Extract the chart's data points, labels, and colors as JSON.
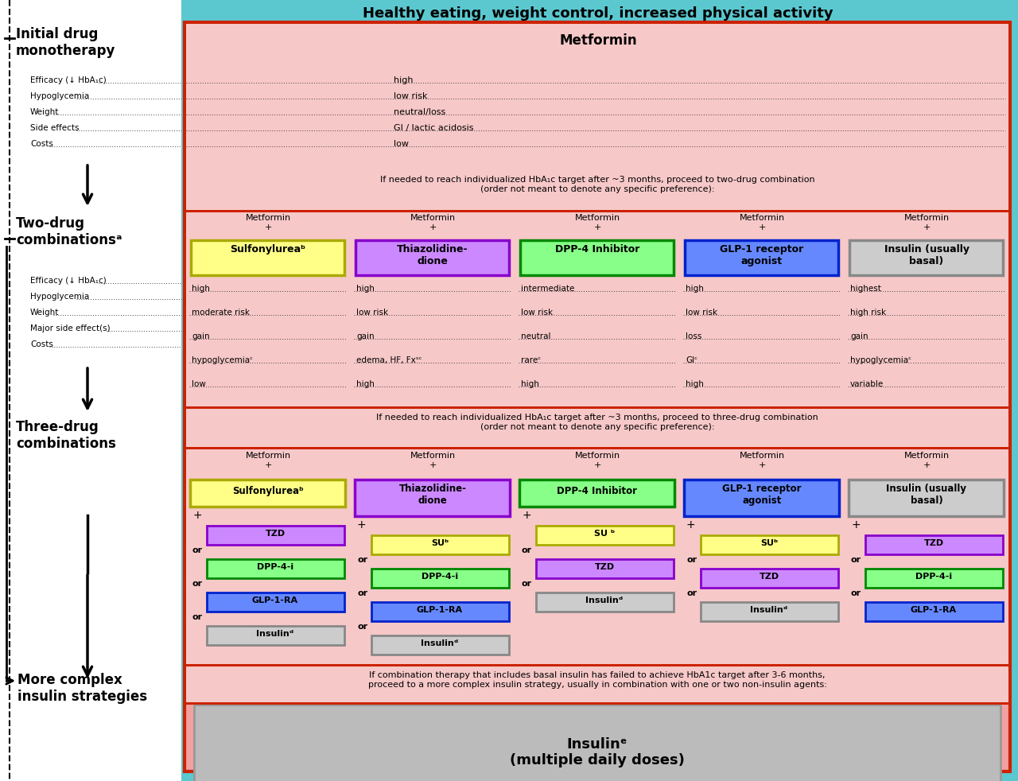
{
  "title": "Healthy eating, weight control, increased physical activity",
  "outer_bg": "#5bc8d0",
  "main_bg": "#f2a0a0",
  "main_border": "#cc2200",
  "inner_bg": "#f7c8c8",
  "mono_drug": "Metformin",
  "mono_rows": [
    [
      "Efficacy (↓ HbA₁c)",
      "high"
    ],
    [
      "Hypoglycemia",
      "low risk"
    ],
    [
      "Weight",
      "neutral/loss"
    ],
    [
      "Side effects",
      "GI / lactic acidosis"
    ],
    [
      "Costs",
      "low"
    ]
  ],
  "two_drug_note": "If needed to reach individualized HbA₁c target after ~3 months, proceed to two-drug combination\n(order not meant to denote any specific preference):",
  "two_drug_cols": [
    {
      "drug": "Sulfonylureaᵇ",
      "drug_bg": "#ffff88",
      "drug_border": "#aaaa00",
      "values": [
        "high",
        "moderate risk",
        "gain",
        "hypoglycemiaᶜ",
        "low"
      ]
    },
    {
      "drug": "Thiazolidine-\ndione",
      "drug_bg": "#cc88ff",
      "drug_border": "#8800cc",
      "values": [
        "high",
        "low risk",
        "gain",
        "edema, HF, Fxˢᶜ",
        "high"
      ]
    },
    {
      "drug": "DPP-4 Inhibitor",
      "drug_bg": "#88ff88",
      "drug_border": "#008800",
      "values": [
        "intermediate",
        "low risk",
        "neutral",
        "rareᶜ",
        "high"
      ]
    },
    {
      "drug": "GLP-1 receptor\nagonist",
      "drug_bg": "#6688ff",
      "drug_border": "#0022cc",
      "values": [
        "high",
        "low risk",
        "loss",
        "GIᶜ",
        "high"
      ]
    },
    {
      "drug": "Insulin (usually\nbasal)",
      "drug_bg": "#cccccc",
      "drug_border": "#888888",
      "values": [
        "highest",
        "high risk",
        "gain",
        "hypoglycemiaᶜ",
        "variable"
      ]
    }
  ],
  "two_drug_row_labels": [
    "Efficacy (↓ HbA₁c)",
    "Hypoglycemia",
    "Weight",
    "Major side effect(s)",
    "Costs"
  ],
  "three_drug_note": "If needed to reach individualized HbA₁c target after ~3 months, proceed to three-drug combination\n(order not meant to denote any specific preference):",
  "three_drug_cols": [
    {
      "drug": "Sulfonylureaᵇ",
      "drug_bg": "#ffff88",
      "drug_border": "#aaaa00",
      "add_drugs": [
        {
          "name": "TZD",
          "bg": "#cc88ff",
          "border": "#8800cc"
        },
        {
          "name": "DPP-4-i",
          "bg": "#88ff88",
          "border": "#008800"
        },
        {
          "name": "GLP-1-RA",
          "bg": "#6688ff",
          "border": "#0022cc"
        },
        {
          "name": "Insulinᵈ",
          "bg": "#cccccc",
          "border": "#888888"
        }
      ]
    },
    {
      "drug": "Thiazolidine-\ndione",
      "drug_bg": "#cc88ff",
      "drug_border": "#8800cc",
      "add_drugs": [
        {
          "name": "SUᵇ",
          "bg": "#ffff88",
          "border": "#aaaa00"
        },
        {
          "name": "DPP-4-i",
          "bg": "#88ff88",
          "border": "#008800"
        },
        {
          "name": "GLP-1-RA",
          "bg": "#6688ff",
          "border": "#0022cc"
        },
        {
          "name": "Insulinᵈ",
          "bg": "#cccccc",
          "border": "#888888"
        }
      ]
    },
    {
      "drug": "DPP-4 Inhibitor",
      "drug_bg": "#88ff88",
      "drug_border": "#008800",
      "add_drugs": [
        {
          "name": "SU ᵇ",
          "bg": "#ffff88",
          "border": "#aaaa00"
        },
        {
          "name": "TZD",
          "bg": "#cc88ff",
          "border": "#8800cc"
        },
        {
          "name": "Insulinᵈ",
          "bg": "#cccccc",
          "border": "#888888"
        }
      ]
    },
    {
      "drug": "GLP-1 receptor\nagonist",
      "drug_bg": "#6688ff",
      "drug_border": "#0022cc",
      "add_drugs": [
        {
          "name": "SUᵇ",
          "bg": "#ffff88",
          "border": "#aaaa00"
        },
        {
          "name": "TZD",
          "bg": "#cc88ff",
          "border": "#8800cc"
        },
        {
          "name": "Insulinᵈ",
          "bg": "#cccccc",
          "border": "#888888"
        }
      ]
    },
    {
      "drug": "Insulin (usually\nbasal)",
      "drug_bg": "#cccccc",
      "drug_border": "#888888",
      "add_drugs": [
        {
          "name": "TZD",
          "bg": "#cc88ff",
          "border": "#8800cc"
        },
        {
          "name": "DPP-4-i",
          "bg": "#88ff88",
          "border": "#008800"
        },
        {
          "name": "GLP-1-RA",
          "bg": "#6688ff",
          "border": "#0022cc"
        }
      ]
    }
  ],
  "complex_note": "If combination therapy that includes basal insulin has failed to achieve HbA1c target after 3-6 months,\nproceed to a more complex insulin strategy, usually in combination with one or two non-insulin agents:",
  "complex_drug_line1": "Insulinᵉ",
  "complex_drug_line2": "(multiple daily doses)"
}
